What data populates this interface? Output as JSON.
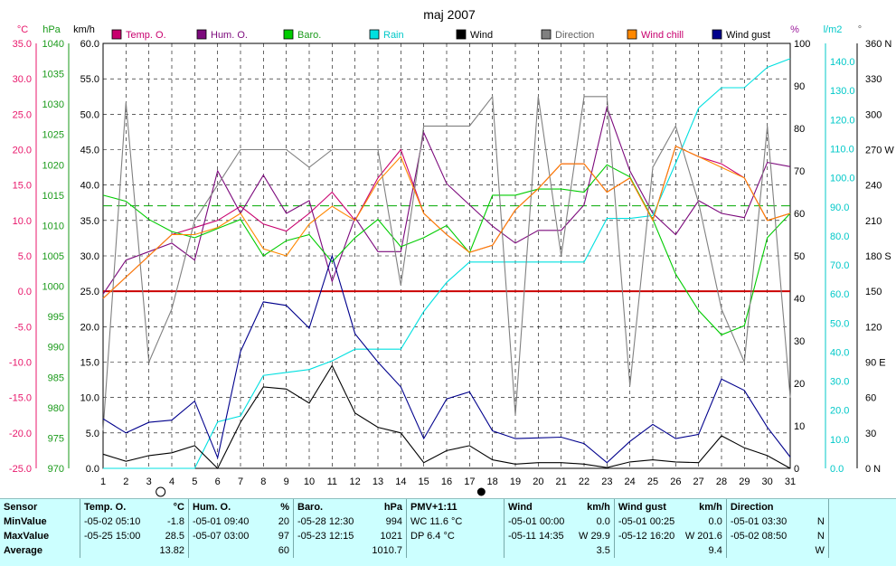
{
  "chart_data": {
    "type": "line",
    "title": "maj 2007",
    "x": [
      1,
      2,
      3,
      4,
      5,
      6,
      7,
      8,
      9,
      10,
      11,
      12,
      13,
      14,
      15,
      16,
      17,
      18,
      19,
      20,
      21,
      22,
      23,
      24,
      25,
      26,
      27,
      28,
      29,
      30,
      31
    ],
    "x_ticks": [
      "1",
      "2",
      "3",
      "4",
      "5",
      "6",
      "7",
      "8",
      "9",
      "10",
      "11",
      "12",
      "13",
      "14",
      "15",
      "16",
      "17",
      "18",
      "19",
      "20",
      "21",
      "22",
      "23",
      "24",
      "25",
      "26",
      "27",
      "28",
      "29",
      "30",
      "31"
    ],
    "axes": {
      "temp": {
        "unit": "°C",
        "min": -25,
        "max": 35,
        "ticks": [
          "35.0",
          "30.0",
          "25.0",
          "20.0",
          "15.0",
          "10.0",
          "5.0",
          "0.0",
          "-5.0",
          "-10.0",
          "-15.0",
          "-20.0",
          "-25.0"
        ],
        "color": "#e8176b"
      },
      "baro": {
        "unit": "hPa",
        "min": 970,
        "max": 1040,
        "ticks": [
          "1040",
          "1035",
          "1030",
          "1025",
          "1020",
          "1015",
          "1010",
          "1005",
          "1000",
          "995",
          "990",
          "985",
          "980",
          "975",
          "970"
        ],
        "color": "#1a9a1a"
      },
      "wind": {
        "unit": "km/h",
        "min": 0,
        "max": 60,
        "ticks": [
          "60.0",
          "55.0",
          "50.0",
          "45.0",
          "40.0",
          "35.0",
          "30.0",
          "25.0",
          "20.0",
          "15.0",
          "10.0",
          "5.0",
          "0.0"
        ],
        "color": "#000000"
      },
      "hum": {
        "unit": "%",
        "min": 0,
        "max": 100,
        "ticks": [
          "100",
          "90",
          "80",
          "70",
          "60",
          "50",
          "40",
          "30",
          "20",
          "10",
          "0"
        ],
        "color": "#9b1a9b"
      },
      "rain": {
        "unit": "l/m2",
        "min": 0,
        "max": 146.25,
        "ticks": [
          "140.0",
          "130.0",
          "120.0",
          "110.0",
          "100.0",
          "90.0",
          "80.0",
          "70.0",
          "60.0",
          "50.0",
          "40.0",
          "30.0",
          "20.0",
          "10.0",
          "0.0"
        ],
        "color": "#00c8c8"
      },
      "dir": {
        "unit": "°",
        "min": 0,
        "max": 360,
        "ticks": [
          "360 N",
          "330",
          "300",
          "270 W",
          "240",
          "210",
          "180 S",
          "150",
          "120",
          "90 E",
          "60",
          "30",
          "0 N"
        ],
        "color": "#606060"
      }
    },
    "series": [
      {
        "name": "Temp. O.",
        "axis": "temp",
        "color": "#c8006e",
        "values": [
          -1,
          2,
          5,
          8,
          9,
          10,
          12,
          9.5,
          8.5,
          11,
          14,
          10,
          16,
          20,
          11,
          8,
          5.5,
          6.5,
          11.5,
          14.5,
          18,
          18,
          14,
          16,
          10,
          20.5,
          19,
          18,
          16,
          10,
          11
        ]
      },
      {
        "name": "Hum. O.",
        "axis": "hum",
        "color": "#7c0a7c",
        "values": [
          41,
          49,
          51,
          53,
          49,
          70,
          60,
          69,
          60,
          63,
          44,
          59,
          51,
          51,
          79,
          67,
          62,
          57,
          53,
          56,
          56,
          62,
          85,
          70,
          60,
          55,
          63,
          60,
          59,
          72,
          71
        ]
      },
      {
        "name": "Baro.",
        "axis": "baro",
        "color": "#00cc00",
        "values": [
          1015,
          1014,
          1011,
          1009,
          1008,
          1009.5,
          1011,
          1005,
          1007.5,
          1008.5,
          1004,
          1008,
          1011,
          1006.5,
          1008,
          1010,
          1005.5,
          1015,
          1015,
          1016,
          1016,
          1015.5,
          1020,
          1018,
          1011,
          1002,
          996,
          992,
          993.5,
          1008,
          1012
        ]
      },
      {
        "name": "Rain",
        "axis": "rain",
        "color": "#00e0e0",
        "values": [
          0,
          0,
          0,
          0,
          0,
          16,
          18,
          32,
          33,
          34,
          37,
          41,
          41,
          41,
          54,
          64,
          71,
          71,
          71,
          71,
          71,
          71,
          86,
          86,
          87,
          105,
          124,
          131,
          131,
          138,
          141
        ]
      },
      {
        "name": "Wind",
        "axis": "wind",
        "color": "#000000",
        "values": [
          2,
          1,
          1.8,
          2.2,
          3.2,
          0,
          6.5,
          11.5,
          11.2,
          9.2,
          14.5,
          7.8,
          5.8,
          5,
          0.8,
          2.5,
          3.2,
          1.2,
          0.6,
          0.8,
          0.8,
          0.6,
          0.1,
          0.9,
          1.2,
          0.9,
          0.8,
          4.6,
          2.9,
          1.8,
          0
        ]
      },
      {
        "name": "Direction",
        "axis": "dir",
        "color": "#808080",
        "values": [
          32,
          310,
          90,
          135,
          210,
          240,
          270,
          270,
          270,
          255,
          270,
          270,
          270,
          155,
          290,
          290,
          290,
          315,
          45,
          315,
          180,
          315,
          315,
          70,
          255,
          290,
          225,
          135,
          90,
          290,
          60
        ]
      },
      {
        "name": "Wind chill",
        "axis": "temp",
        "color": "#ff8800",
        "values": [
          -1,
          2,
          5,
          8,
          8,
          9,
          11,
          6,
          5,
          9.5,
          12,
          10,
          15.5,
          19,
          11,
          8,
          5.5,
          6.5,
          11.5,
          14.5,
          18,
          18,
          14,
          16,
          10,
          20.5,
          19,
          17.5,
          16,
          10,
          11
        ]
      },
      {
        "name": "Wind gust",
        "axis": "wind",
        "color": "#00008c",
        "values": [
          7,
          5,
          6.5,
          6.8,
          9.5,
          1.5,
          16.5,
          23.5,
          23,
          19.8,
          30,
          19,
          15,
          11.5,
          4.2,
          9.8,
          10.8,
          5.3,
          4.2,
          4.3,
          4.4,
          3.5,
          0.8,
          3.8,
          6.2,
          4.2,
          4.8,
          12.6,
          11,
          5.8,
          1.6
        ]
      }
    ],
    "reference_lines": [
      {
        "axis": "temp",
        "value": 0,
        "color": "#cc0000",
        "style": "solid"
      },
      {
        "axis": "baro",
        "value": 1013.25,
        "color": "#00aa00",
        "style": "dashed"
      }
    ],
    "moon_phases": [
      {
        "day": 3,
        "phase": "full"
      },
      {
        "day": 17,
        "phase": "new"
      }
    ],
    "grid": true,
    "legend_position": "top"
  },
  "summary": {
    "headers": {
      "sensor": "Sensor",
      "temp": "Temp. O.",
      "temp_u": "°C",
      "hum": "Hum. O.",
      "hum_u": "%",
      "baro": "Baro.",
      "baro_u": "hPa",
      "pmv": "PMV+1:11",
      "wind": "Wind",
      "wind_u": "km/h",
      "gust": "Wind gust",
      "gust_u": "km/h",
      "dir": "Direction"
    },
    "rows": [
      {
        "label": "MinValue",
        "temp_t": "-05-02  05:10",
        "temp_v": "-1.8",
        "hum_t": "-05-01  09:40",
        "hum_v": "20",
        "baro_t": "-05-28  12:30",
        "baro_v": "994",
        "pmv": "WC 11.6 °C",
        "wind_t": "-05-01  00:00",
        "wind_v": "0.0",
        "gust_t": "-05-01  00:25",
        "gust_v": "0.0",
        "dir_t": "-05-01  03:30",
        "dir_v": "N"
      },
      {
        "label": "MaxValue",
        "temp_t": "-05-25  15:00",
        "temp_v": "28.5",
        "hum_t": "-05-07  03:00",
        "hum_v": "97",
        "baro_t": "-05-23  12:15",
        "baro_v": "1021",
        "pmv": "DP 6.4 °C",
        "wind_t": "-05-11  14:35",
        "wind_v": "W 29.9",
        "gust_t": "-05-12  16:20",
        "gust_v": "W 201.6",
        "dir_t": "-05-02  08:50",
        "dir_v": "N"
      },
      {
        "label": "Average",
        "temp_t": "",
        "temp_v": "13.82",
        "hum_t": "",
        "hum_v": "60",
        "baro_t": "",
        "baro_v": "1010.7",
        "pmv": "",
        "wind_t": "",
        "wind_v": "3.5",
        "gust_t": "",
        "gust_v": "9.4",
        "dir_t": "",
        "dir_v": "W"
      }
    ]
  }
}
